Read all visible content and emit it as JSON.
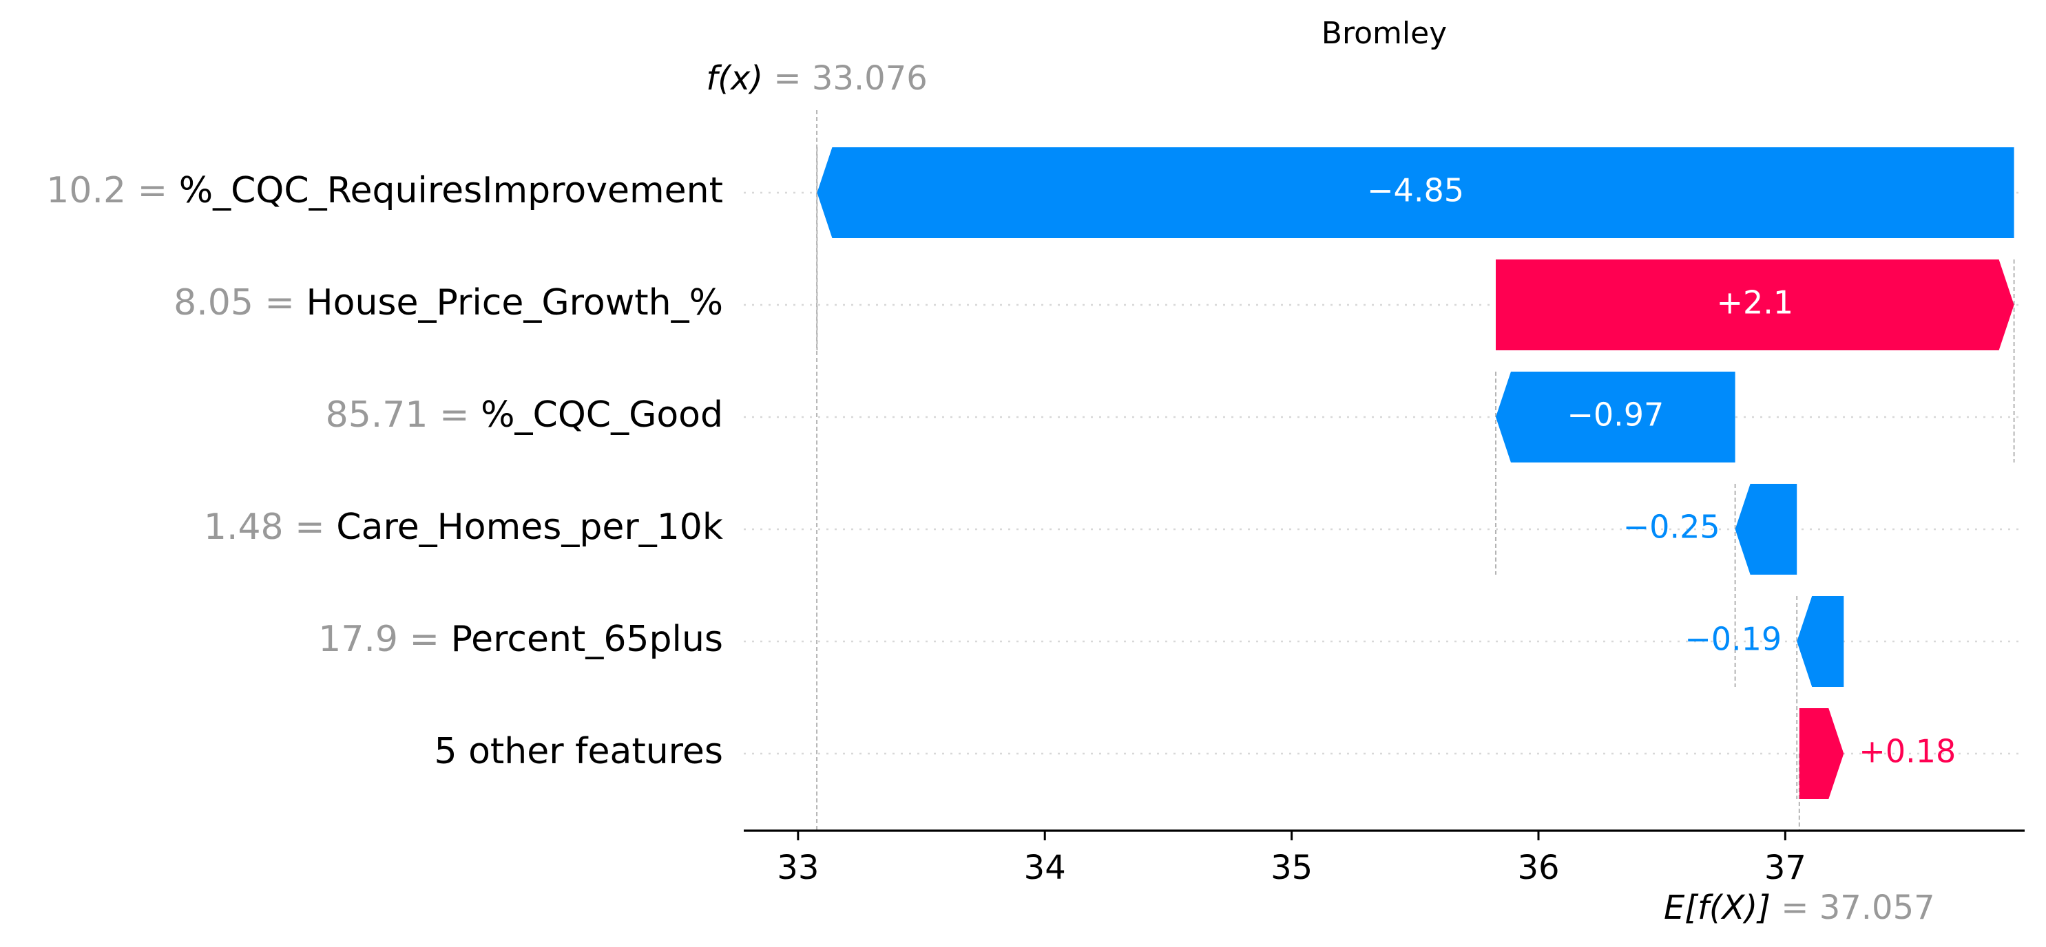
{
  "colors": {
    "negative": "#008bfb",
    "positive": "#ff0051",
    "muted": "#999999",
    "text": "#000000"
  },
  "chart_data": {
    "type": "waterfall",
    "title": "Bromley",
    "fx": {
      "prefix": "f(x)",
      "value": "33.076",
      "number": 33.076
    },
    "expected": {
      "prefix": "E[f(X)]",
      "value": "37.057",
      "number": 37.057
    },
    "xlim": [
      32.78,
      37.97
    ],
    "ticks": [
      33,
      34,
      35,
      36,
      37
    ],
    "tick_labels": [
      "33",
      "34",
      "35",
      "36",
      "37"
    ],
    "features": [
      {
        "value": "10.2",
        "name": "%_CQC_RequiresImprovement",
        "contribution": -4.85,
        "label": "−4.85"
      },
      {
        "value": "8.05",
        "name": "House_Price_Growth_%",
        "contribution": 2.1,
        "label": "+2.1"
      },
      {
        "value": "85.71",
        "name": "%_CQC_Good",
        "contribution": -0.97,
        "label": "−0.97"
      },
      {
        "value": "1.48",
        "name": "Care_Homes_per_10k",
        "contribution": -0.25,
        "label": "−0.25"
      },
      {
        "value": "17.9",
        "name": "Percent_65plus",
        "contribution": -0.19,
        "label": "−0.19"
      },
      {
        "value": "",
        "name": "5 other features",
        "contribution": 0.18,
        "label": "+0.18"
      }
    ]
  }
}
